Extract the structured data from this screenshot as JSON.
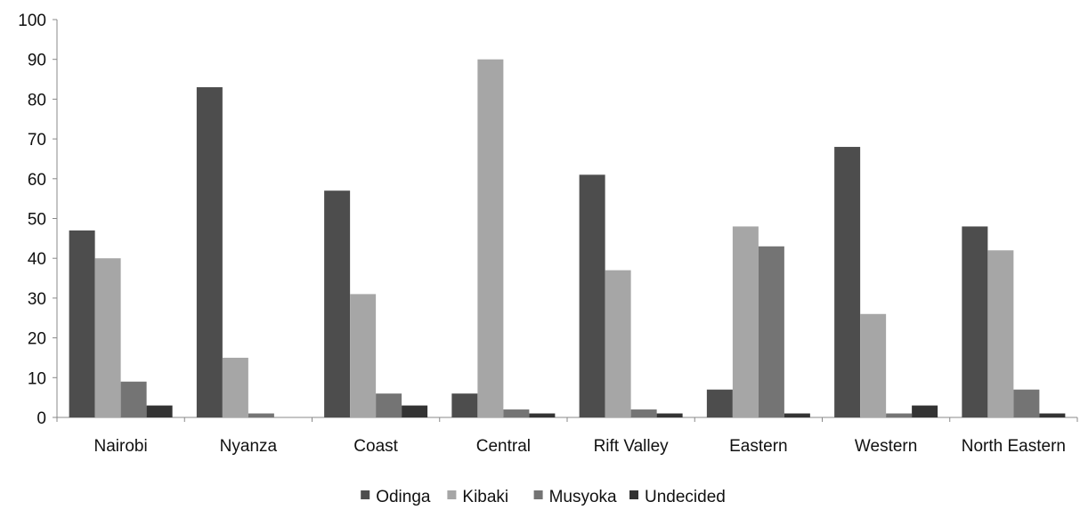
{
  "chart_data": {
    "type": "bar",
    "categories": [
      "Nairobi",
      "Nyanza",
      "Coast",
      "Central",
      "Rift Valley",
      "Eastern",
      "Western",
      "North Eastern"
    ],
    "series": [
      {
        "name": "Odinga",
        "color": "#4d4d4d",
        "values": [
          47,
          83,
          57,
          6,
          61,
          7,
          68,
          48
        ]
      },
      {
        "name": "Kibaki",
        "color": "#a6a6a6",
        "values": [
          40,
          15,
          31,
          90,
          37,
          48,
          26,
          42
        ]
      },
      {
        "name": "Musyoka",
        "color": "#747474",
        "values": [
          9,
          1,
          6,
          2,
          2,
          43,
          1,
          7
        ]
      },
      {
        "name": "Undecided",
        "color": "#333333",
        "values": [
          3,
          0,
          3,
          1,
          1,
          1,
          3,
          1
        ]
      }
    ],
    "ylim": [
      0,
      100
    ],
    "yticks": [
      "0",
      "10",
      "20",
      "30",
      "40",
      "50",
      "60",
      "70",
      "80",
      "90",
      "100"
    ],
    "title": "",
    "xlabel": "",
    "ylabel": "",
    "grid": false,
    "legend_position": "bottom"
  }
}
